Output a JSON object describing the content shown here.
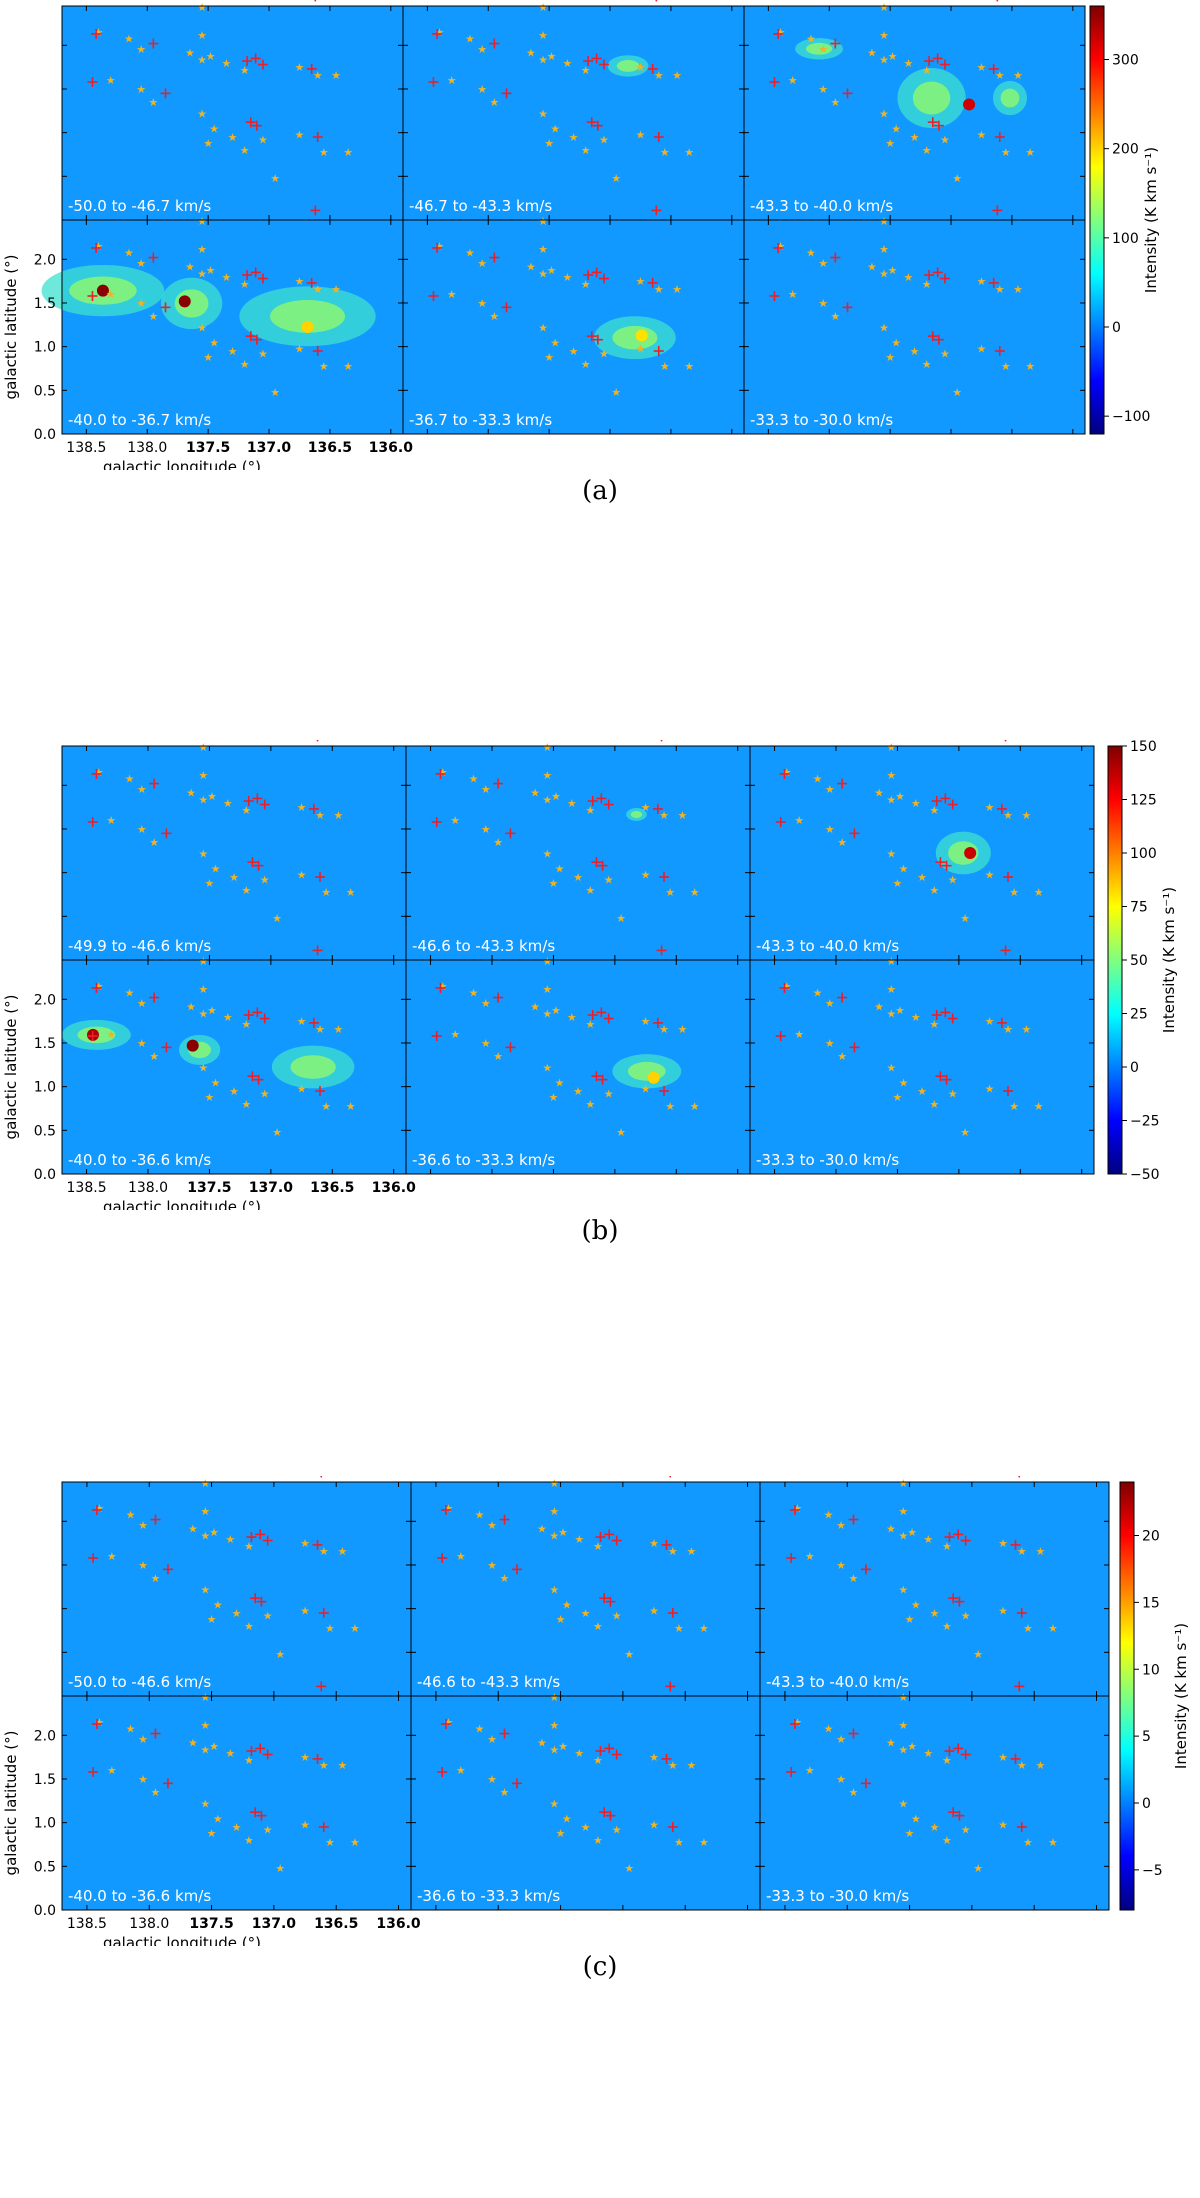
{
  "figures": [
    {
      "caption": "(a)",
      "vel_labels": [
        "-50.0 to -46.7 km/s",
        "-46.7 to -43.3 km/s",
        "-43.3 to -40.0 km/s",
        "-40.0 to -36.7 km/s",
        "-36.7 to -33.3 km/s",
        "-33.3 to -30.0 km/s"
      ],
      "xlabel": "galactic longitude (°)",
      "ylabel": "galactic latitude (°)",
      "cbar_label": "Intensity (K km s⁻¹)",
      "cbar_ticks": [
        "300",
        "200",
        "100",
        "0",
        "−100"
      ],
      "x_ticks": [
        "138.5",
        "138.0",
        "137.5",
        "137.0",
        "136.5",
        "136.0"
      ],
      "y_ticks": [
        "2.0",
        "1.5",
        "1.0",
        "0.5",
        "0.0"
      ]
    },
    {
      "caption": "(b)",
      "vel_labels": [
        "-49.9 to -46.6 km/s",
        "-46.6 to -43.3 km/s",
        "-43.3 to -40.0 km/s",
        "-40.0 to -36.6 km/s",
        "-36.6 to -33.3 km/s",
        "-33.3 to -30.0 km/s"
      ],
      "xlabel": "galactic longitude (°)",
      "ylabel": "galactic latitude (°)",
      "cbar_label": "Intensity (K km s⁻¹)",
      "cbar_ticks": [
        "150",
        "125",
        "100",
        "75",
        "50",
        "25",
        "0",
        "−25",
        "−50"
      ],
      "x_ticks": [
        "138.5",
        "138.0",
        "137.5",
        "137.0",
        "136.5",
        "136.0"
      ],
      "y_ticks": [
        "2.0",
        "1.5",
        "1.0",
        "0.5",
        "0.0"
      ]
    },
    {
      "caption": "(c)",
      "vel_labels": [
        "-50.0 to -46.6 km/s",
        "-46.6 to -43.3 km/s",
        "-43.3 to -40.0 km/s",
        "-40.0 to -36.6 km/s",
        "-36.6 to -33.3 km/s",
        "-33.3 to -30.0 km/s"
      ],
      "xlabel": "galactic longitude (°)",
      "ylabel": "galactic latitude (°)",
      "cbar_label": "Intensity (K km s⁻¹)",
      "cbar_ticks": [
        "20",
        "15",
        "10",
        "5",
        "0",
        "−5"
      ],
      "x_ticks": [
        "138.5",
        "138.0",
        "137.5",
        "137.0",
        "136.5",
        "136.0"
      ],
      "y_ticks": [
        "2.0",
        "1.5",
        "1.0",
        "0.5",
        "0.0"
      ]
    }
  ],
  "chart_data": [
    {
      "type": "heatmap",
      "title": "(a)",
      "xlabel": "galactic longitude (°)",
      "ylabel": "galactic latitude (°)",
      "colorbar_label": "Intensity (K km s⁻¹)",
      "colormap": "jet",
      "colorbar_range": [
        -120,
        360
      ],
      "colorbar_ticks": [
        -100,
        0,
        100,
        200,
        300
      ],
      "xlim": [
        138.7,
        135.9
      ],
      "ylim": [
        0.0,
        2.45
      ],
      "x_ticks": [
        138.5,
        138.0,
        137.5,
        137.0,
        136.5,
        136.0
      ],
      "y_ticks": [
        0.0,
        0.5,
        1.0,
        1.5,
        2.0
      ],
      "panels": [
        "-50.0 to -46.7 km/s",
        "-46.7 to -43.3 km/s",
        "-43.3 to -40.0 km/s",
        "-40.0 to -36.7 km/s",
        "-36.7 to -33.3 km/s",
        "-33.3 to -30.0 km/s"
      ]
    },
    {
      "type": "heatmap",
      "title": "(b)",
      "xlabel": "galactic longitude (°)",
      "ylabel": "galactic latitude (°)",
      "colorbar_label": "Intensity (K km s⁻¹)",
      "colormap": "jet",
      "colorbar_range": [
        -50,
        150
      ],
      "colorbar_ticks": [
        -50,
        -25,
        0,
        25,
        50,
        75,
        100,
        125,
        150
      ],
      "xlim": [
        138.7,
        135.9
      ],
      "ylim": [
        0.0,
        2.45
      ],
      "x_ticks": [
        138.5,
        138.0,
        137.5,
        137.0,
        136.5,
        136.0
      ],
      "y_ticks": [
        0.0,
        0.5,
        1.0,
        1.5,
        2.0
      ],
      "panels": [
        "-49.9 to -46.6 km/s",
        "-46.6 to -43.3 km/s",
        "-43.3 to -40.0 km/s",
        "-40.0 to -36.6 km/s",
        "-36.6 to -33.3 km/s",
        "-33.3 to -30.0 km/s"
      ]
    },
    {
      "type": "heatmap",
      "title": "(c)",
      "xlabel": "galactic longitude (°)",
      "ylabel": "galactic latitude (°)",
      "colorbar_label": "Intensity (K km s⁻¹)",
      "colormap": "jet",
      "colorbar_range": [
        -8,
        24
      ],
      "colorbar_ticks": [
        -5,
        0,
        5,
        10,
        15,
        20
      ],
      "xlim": [
        138.7,
        135.9
      ],
      "ylim": [
        0.0,
        2.45
      ],
      "x_ticks": [
        138.5,
        138.0,
        137.5,
        137.0,
        136.5,
        136.0
      ],
      "y_ticks": [
        0.0,
        0.5,
        1.0,
        1.5,
        2.0
      ],
      "panels": [
        "-50.0 to -46.6 km/s",
        "-46.6 to -43.3 km/s",
        "-43.3 to -40.0 km/s",
        "-40.0 to -36.6 km/s",
        "-36.6 to -33.3 km/s",
        "-33.3 to -30.0 km/s"
      ]
    }
  ],
  "markers": {
    "plus_color": "#e8202a",
    "star_color": "#f0b324",
    "background_color": "#1199ff",
    "plus_positions_lb": [
      [
        138.42,
        2.13
      ],
      [
        137.95,
        2.02
      ],
      [
        137.18,
        1.82
      ],
      [
        137.11,
        1.85
      ],
      [
        137.05,
        1.78
      ],
      [
        136.65,
        1.73
      ],
      [
        136.62,
        2.56
      ],
      [
        138.45,
        1.58
      ],
      [
        137.85,
        1.45
      ],
      [
        137.15,
        1.12
      ],
      [
        137.1,
        1.08
      ],
      [
        136.6,
        0.95
      ]
    ],
    "star_positions_lb": [
      [
        138.4,
        2.15
      ],
      [
        138.15,
        2.08
      ],
      [
        138.05,
        1.96
      ],
      [
        137.65,
        1.92
      ],
      [
        137.55,
        1.84
      ],
      [
        137.48,
        1.88
      ],
      [
        137.35,
        1.8
      ],
      [
        137.2,
        1.72
      ],
      [
        136.75,
        1.75
      ],
      [
        136.6,
        1.66
      ],
      [
        136.45,
        1.66
      ],
      [
        137.55,
        2.44
      ],
      [
        138.3,
        1.6
      ],
      [
        138.05,
        1.5
      ],
      [
        137.95,
        1.35
      ],
      [
        137.55,
        2.12
      ],
      [
        137.55,
        1.22
      ],
      [
        137.45,
        1.05
      ],
      [
        137.3,
        0.95
      ],
      [
        137.2,
        0.8
      ],
      [
        137.5,
        0.88
      ],
      [
        136.75,
        0.98
      ],
      [
        136.55,
        0.78
      ],
      [
        136.35,
        0.78
      ],
      [
        136.95,
        0.48
      ],
      [
        137.05,
        0.92
      ]
    ]
  }
}
